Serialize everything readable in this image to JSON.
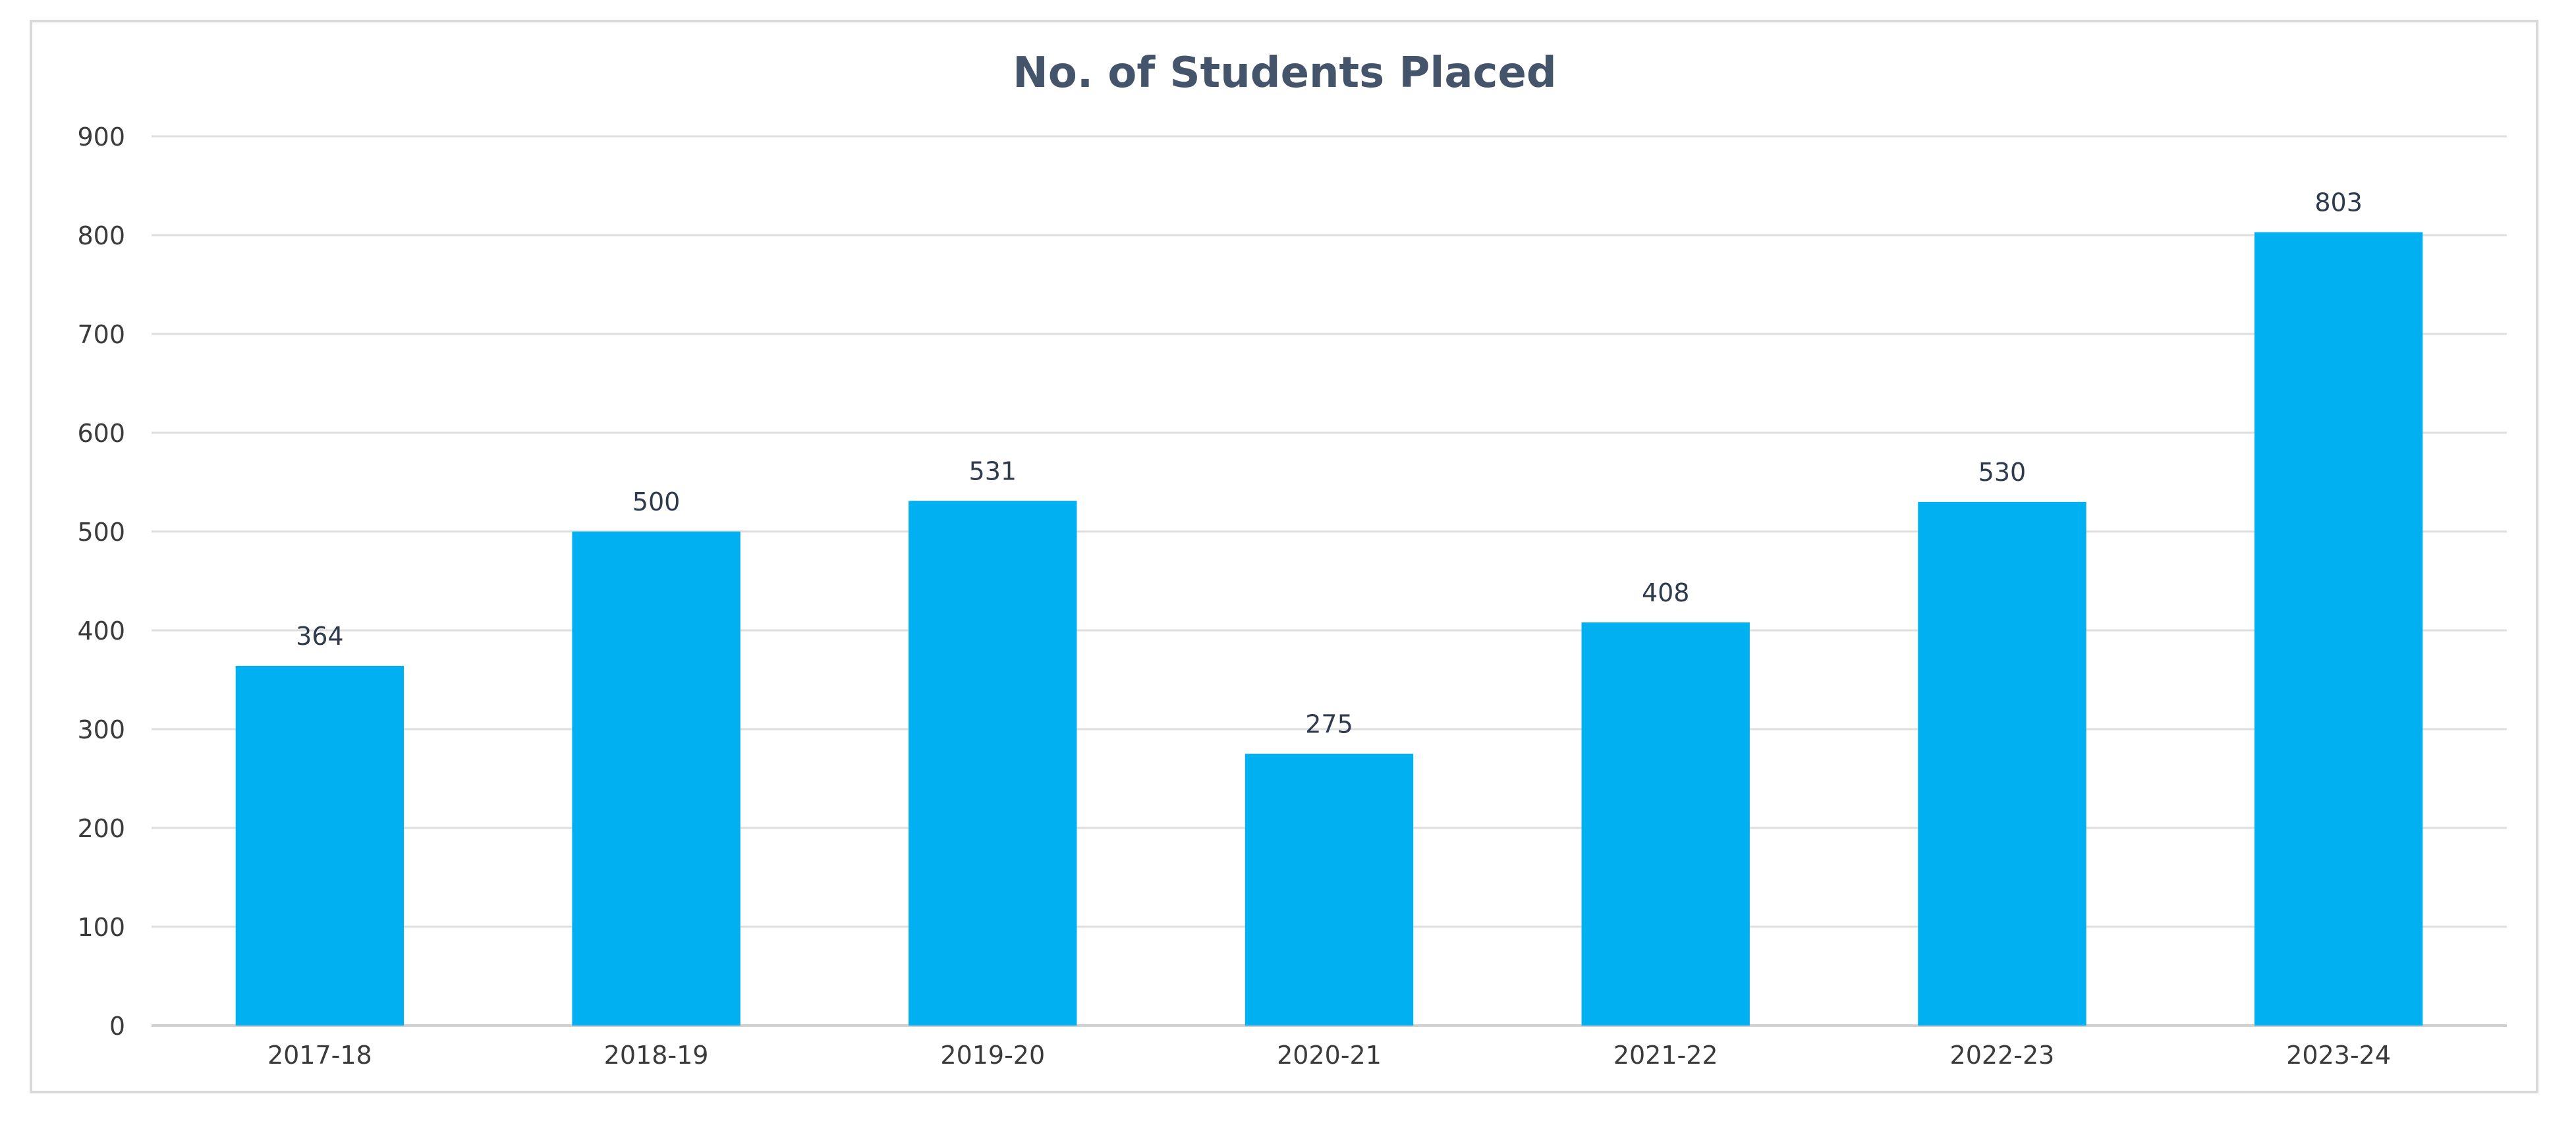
{
  "chart_data": {
    "type": "bar",
    "title": "No. of Students Placed",
    "xlabel": "",
    "ylabel": "",
    "categories": [
      "2017-18",
      "2018-19",
      "2019-20",
      "2020-21",
      "2021-22",
      "2022-23",
      "2023-24"
    ],
    "values": [
      364,
      500,
      531,
      275,
      408,
      530,
      803
    ],
    "data_labels": [
      "364",
      "500",
      "531",
      "275",
      "408",
      "530",
      "803"
    ],
    "ylim": [
      0,
      900
    ],
    "yticks": [
      0,
      100,
      200,
      300,
      400,
      500,
      600,
      700,
      800,
      900
    ],
    "grid": true,
    "legend": "none",
    "bar_color": "#00b0f0"
  }
}
